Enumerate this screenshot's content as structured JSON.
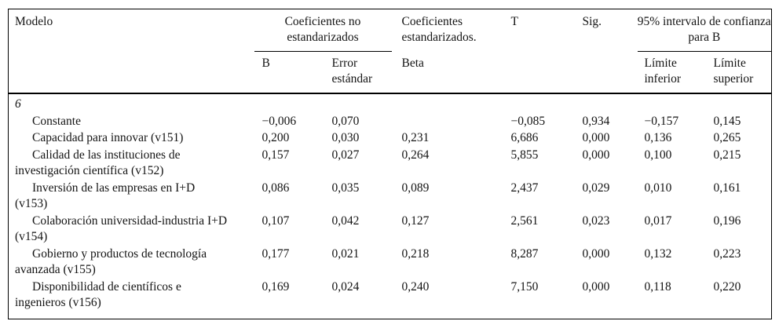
{
  "colors": {
    "ink": "#141414",
    "background": "#ffffff",
    "rule": "#000000"
  },
  "table": {
    "header": {
      "model": "Modelo",
      "group_unstandardized": "Coeficientes no estandarizados",
      "group_standardized": "Coeficientes estandarizados.",
      "t": "T",
      "sig": "Sig.",
      "group_confidence": "95% intervalo de confianza para B",
      "sub_b": "B",
      "sub_std_error": "Error estándar",
      "sub_beta": "Beta",
      "sub_lower": "Límite inferior",
      "sub_upper": "Límite superior"
    },
    "model_number": "6",
    "rows": [
      {
        "label": [
          "Constante"
        ],
        "b": "−0,006",
        "se": "0,070",
        "beta": "",
        "t": "−0,085",
        "sig": "0,934",
        "lower": "−0,157",
        "upper": "0,145"
      },
      {
        "label": [
          "Capacidad para innovar (v151)"
        ],
        "b": "0,200",
        "se": "0,030",
        "beta": "0,231",
        "t": "6,686",
        "sig": "0,000",
        "lower": "0,136",
        "upper": "0,265"
      },
      {
        "label": [
          "Calidad de las instituciones de",
          "investigación científica (v152)"
        ],
        "b": "0,157",
        "se": "0,027",
        "beta": "0,264",
        "t": "5,855",
        "sig": "0,000",
        "lower": "0,100",
        "upper": "0,215"
      },
      {
        "label": [
          "Inversión de las empresas en I+D",
          "(v153)"
        ],
        "b": "0,086",
        "se": "0,035",
        "beta": "0,089",
        "t": "2,437",
        "sig": "0,029",
        "lower": "0,010",
        "upper": "0,161"
      },
      {
        "label": [
          "Colaboración universidad-industria I+D",
          "(v154)"
        ],
        "b": "0,107",
        "se": "0,042",
        "beta": "0,127",
        "t": "2,561",
        "sig": "0,023",
        "lower": "0,017",
        "upper": "0,196"
      },
      {
        "label": [
          "Gobierno y productos de tecnología",
          "avanzada (v155)"
        ],
        "b": "0,177",
        "se": "0,021",
        "beta": "0,218",
        "t": "8,287",
        "sig": "0,000",
        "lower": "0,132",
        "upper": "0,223"
      },
      {
        "label": [
          "Disponibilidad de científicos e",
          "ingenieros (v156)"
        ],
        "b": "0,169",
        "se": "0,024",
        "beta": "0,240",
        "t": "7,150",
        "sig": "0,000",
        "lower": "0,118",
        "upper": "0,220"
      }
    ]
  }
}
